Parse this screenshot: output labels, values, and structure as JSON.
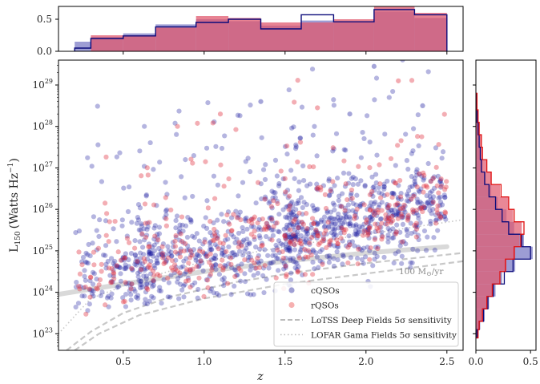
{
  "chart_data": [
    {
      "panel": "top-histogram",
      "type": "histogram",
      "x_bins": [
        0.2,
        0.3,
        0.5,
        0.7,
        0.95,
        1.15,
        1.35,
        1.6,
        1.8,
        2.05,
        2.3,
        2.5
      ],
      "series": [
        {
          "name": "cQSOs",
          "style": "filled",
          "color": "#8c8ccc",
          "values": [
            0.15,
            0.22,
            0.28,
            0.42,
            0.5,
            0.47,
            0.4,
            0.48,
            0.45,
            0.62,
            0.52
          ]
        },
        {
          "name": "cQSOs",
          "style": "step",
          "color": "#0a0a7a",
          "values": [
            0.05,
            0.2,
            0.24,
            0.38,
            0.45,
            0.5,
            0.35,
            0.57,
            0.46,
            0.65,
            0.57
          ]
        },
        {
          "name": "rQSOs",
          "style": "filled",
          "color": "#e05a6f",
          "values": [
            0.0,
            0.25,
            0.25,
            0.37,
            0.55,
            0.52,
            0.45,
            0.45,
            0.5,
            0.7,
            0.6
          ]
        }
      ],
      "ylim": [
        0,
        0.7
      ],
      "yticks": [
        "0.0",
        "0.5"
      ]
    },
    {
      "panel": "main-scatter",
      "type": "scatter",
      "xlabel": "z",
      "ylabel": "L",
      "ylabel_sub": "150",
      "ylabel_unit": "(Watts Hz",
      "ylabel_exp": "−1",
      "ylabel_close": ")",
      "xlim": [
        0.1,
        2.6
      ],
      "ylim_log10": [
        22.6,
        29.6
      ],
      "xticks": [
        "0.5",
        "1.0",
        "1.5",
        "2.0",
        "2.5"
      ],
      "xtick_values": [
        0.5,
        1.0,
        1.5,
        2.0,
        2.5
      ],
      "yticks_exp": [
        "23",
        "24",
        "25",
        "26",
        "27",
        "28",
        "29"
      ],
      "ytick_values": [
        23,
        24,
        25,
        26,
        27,
        28,
        29
      ],
      "ytick_base": "10",
      "sfr_label": "100 M",
      "sfr_label_sun": "⊙",
      "sfr_label_unit": "/yr",
      "sfr_curve": [
        [
          0.1,
          23.95
        ],
        [
          0.5,
          24.2
        ],
        [
          1.0,
          24.5
        ],
        [
          1.5,
          24.75
        ],
        [
          2.0,
          24.95
        ],
        [
          2.5,
          25.1
        ]
      ],
      "lotss_curve_1": [
        [
          0.15,
          22.6
        ],
        [
          0.3,
          23.05
        ],
        [
          0.5,
          23.5
        ],
        [
          0.8,
          23.9
        ],
        [
          1.2,
          24.25
        ],
        [
          1.6,
          24.5
        ],
        [
          2.0,
          24.7
        ],
        [
          2.6,
          24.95
        ]
      ],
      "lotss_curve_2": [
        [
          0.2,
          22.6
        ],
        [
          0.35,
          23.0
        ],
        [
          0.6,
          23.45
        ],
        [
          1.0,
          23.85
        ],
        [
          1.5,
          24.2
        ],
        [
          2.0,
          24.45
        ],
        [
          2.6,
          24.75
        ]
      ],
      "lofar_curve": [
        [
          0.1,
          23.0
        ],
        [
          0.3,
          23.85
        ],
        [
          0.6,
          24.3
        ],
        [
          1.0,
          24.75
        ],
        [
          1.5,
          25.1
        ],
        [
          2.0,
          25.4
        ],
        [
          2.6,
          25.75
        ]
      ],
      "legend": [
        {
          "label": "cQSOs",
          "kind": "marker",
          "color": "#5050b0"
        },
        {
          "label": "rQSOs",
          "kind": "marker",
          "color": "#ee7070"
        },
        {
          "label": "LoTSS Deep Fields 5σ sensitivity",
          "kind": "dashed",
          "color": "#bbbbbb"
        },
        {
          "label": "LOFAR Gama Fields 5σ sensitivity",
          "kind": "dotted",
          "color": "#bbbbbb"
        }
      ],
      "legend_location": "lower-right",
      "colors": {
        "cqso": "#1f1fa0",
        "rqso": "#e02a3a",
        "curve": "#c8c8c8"
      }
    },
    {
      "panel": "right-histogram",
      "type": "histogram",
      "orientation": "horizontal",
      "y_bins_log10": [
        22.9,
        23.1,
        23.3,
        23.6,
        23.9,
        24.2,
        24.5,
        24.8,
        25.1,
        25.4,
        25.7,
        26.0,
        26.3,
        26.6,
        26.9,
        27.2,
        27.5,
        27.8,
        28.1,
        28.4,
        28.8
      ],
      "series": [
        {
          "name": "cQSOs",
          "style": "filled",
          "color": "#8c8ccc",
          "values": [
            0.02,
            0.04,
            0.08,
            0.12,
            0.18,
            0.24,
            0.36,
            0.52,
            0.44,
            0.35,
            0.28,
            0.2,
            0.14,
            0.09,
            0.06,
            0.04,
            0.03,
            0.02,
            0.01,
            0.01
          ]
        },
        {
          "name": "cQSOs",
          "style": "step",
          "color": "#0a0a7a",
          "values": [
            0.01,
            0.03,
            0.07,
            0.11,
            0.16,
            0.26,
            0.34,
            0.5,
            0.42,
            0.3,
            0.24,
            0.18,
            0.12,
            0.08,
            0.05,
            0.04,
            0.03,
            0.02,
            0.01,
            0.005
          ]
        },
        {
          "name": "rQSOs",
          "style": "filled",
          "color": "#e05a6f",
          "values": [
            0.02,
            0.03,
            0.06,
            0.1,
            0.15,
            0.22,
            0.28,
            0.36,
            0.4,
            0.42,
            0.34,
            0.3,
            0.22,
            0.14,
            0.1,
            0.06,
            0.05,
            0.03,
            0.02,
            0.01
          ]
        },
        {
          "name": "rQSOs",
          "style": "step",
          "color": "#e01010",
          "values": [
            0.02,
            0.03,
            0.06,
            0.1,
            0.15,
            0.22,
            0.27,
            0.35,
            0.41,
            0.44,
            0.35,
            0.3,
            0.23,
            0.14,
            0.1,
            0.06,
            0.05,
            0.03,
            0.02,
            0.01
          ]
        }
      ],
      "xlim": [
        0,
        0.55
      ],
      "xticks": [
        "0.0",
        "0.5"
      ]
    }
  ]
}
